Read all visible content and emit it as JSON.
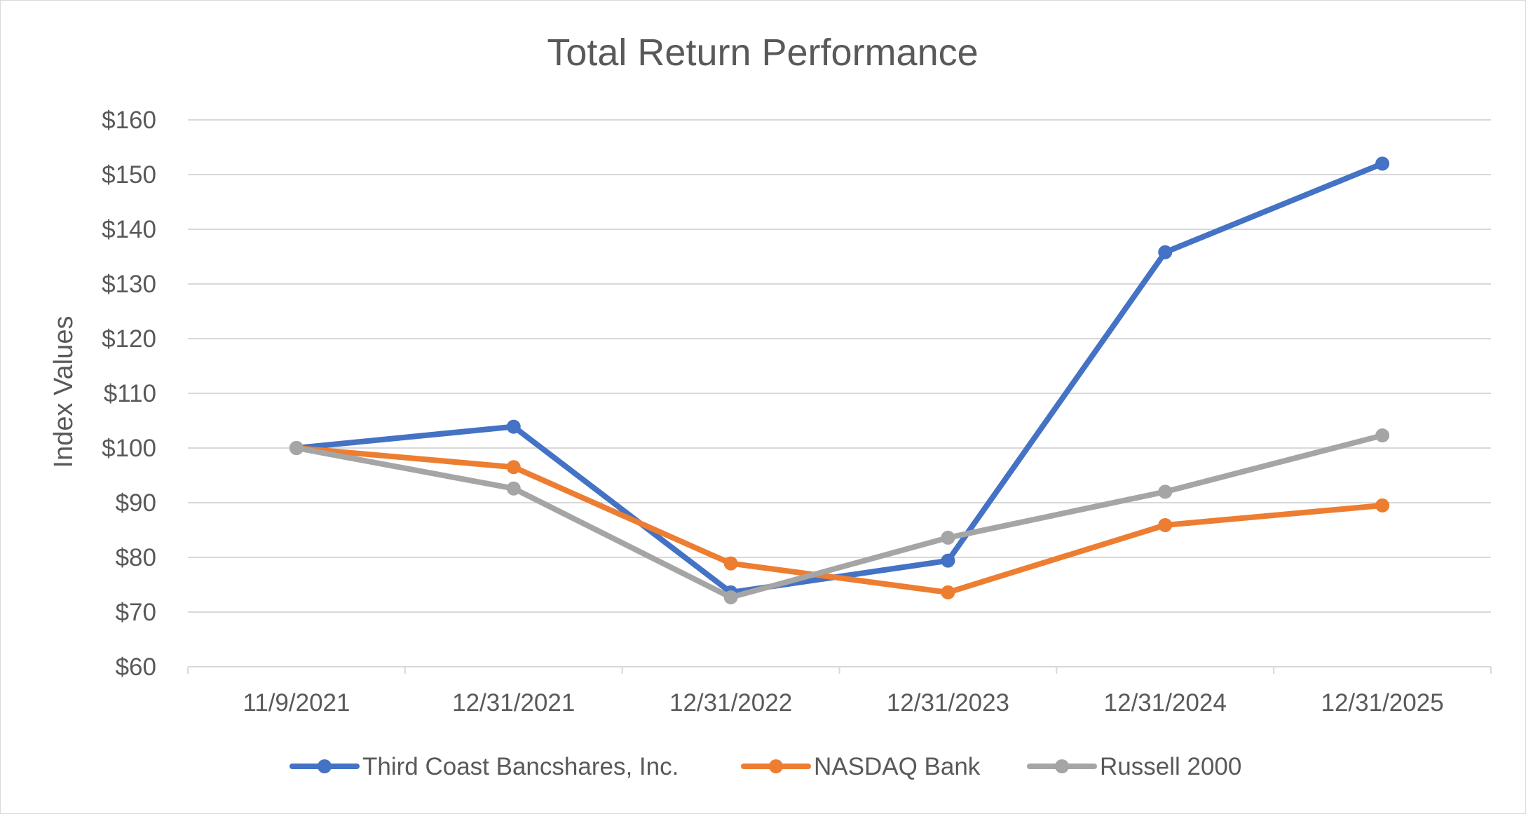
{
  "chart_data": {
    "type": "line",
    "title": "Total Return Performance",
    "xlabel": "",
    "ylabel": "Index Values",
    "categories": [
      "11/9/2021",
      "12/31/2021",
      "12/31/2022",
      "12/31/2023",
      "12/31/2024",
      "12/31/2025"
    ],
    "ylim": [
      60,
      160
    ],
    "yticks": [
      60,
      70,
      80,
      90,
      100,
      110,
      120,
      130,
      140,
      150,
      160
    ],
    "ytick_labels": [
      "$60",
      "$70",
      "$80",
      "$90",
      "$100",
      "$110",
      "$120",
      "$130",
      "$140",
      "$150",
      "$160"
    ],
    "grid": true,
    "legend_position": "bottom",
    "series": [
      {
        "name": "Third Coast Bancshares, Inc.",
        "color": "#4472c4",
        "values": [
          100,
          103.9,
          73.6,
          79.4,
          135.8,
          152.0
        ]
      },
      {
        "name": "NASDAQ Bank",
        "color": "#ed7d31",
        "values": [
          100,
          96.5,
          78.9,
          73.6,
          85.9,
          89.5
        ]
      },
      {
        "name": "Russell 2000",
        "color": "#a5a5a5",
        "values": [
          100,
          92.6,
          72.7,
          83.6,
          92.0,
          102.3
        ]
      }
    ]
  }
}
